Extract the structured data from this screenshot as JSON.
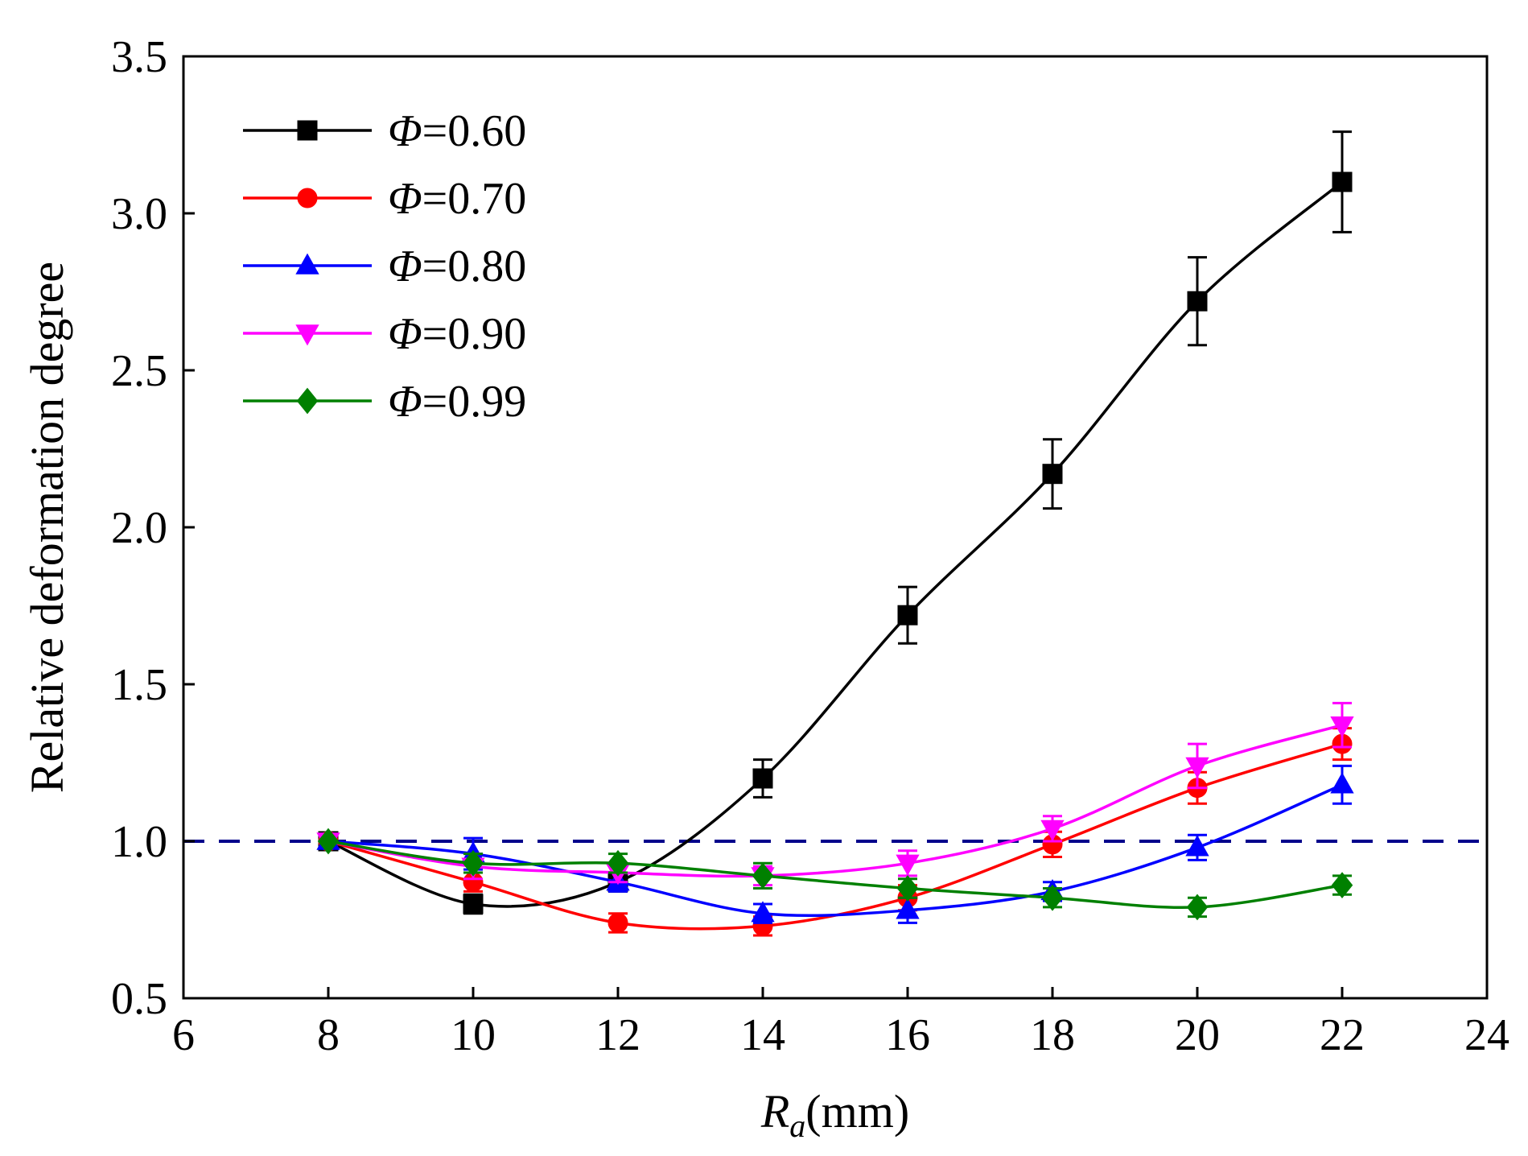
{
  "chart_data": {
    "type": "line",
    "xlabel": {
      "main": "R",
      "sub": "a",
      "unit": "(mm)"
    },
    "ylabel": "Relative deformation degree",
    "xlim": [
      6,
      24
    ],
    "ylim": [
      0.5,
      3.5
    ],
    "xticks": [
      "6",
      "8",
      "10",
      "12",
      "14",
      "16",
      "18",
      "20",
      "22",
      "24"
    ],
    "yticks": [
      "0.5",
      "1.0",
      "1.5",
      "2.0",
      "2.5",
      "3.0",
      "3.5"
    ],
    "reference_line": {
      "y": 1.0,
      "style": "dashed",
      "color": "#00008b"
    },
    "legend_position": "top-left",
    "x": [
      8,
      10,
      12,
      14,
      16,
      18,
      20,
      22
    ],
    "series": [
      {
        "symbol": "Φ",
        "value_text": "=0.60",
        "color": "#000000",
        "marker": "square",
        "values": [
          1.0,
          0.8,
          0.87,
          1.2,
          1.72,
          2.17,
          2.72,
          3.1
        ],
        "errors": [
          0.0,
          0.03,
          0.03,
          0.06,
          0.09,
          0.11,
          0.14,
          0.16
        ]
      },
      {
        "symbol": "Φ",
        "value_text": "=0.70",
        "color": "#ff0000",
        "marker": "circle",
        "values": [
          1.0,
          0.87,
          0.74,
          0.73,
          0.82,
          0.99,
          1.17,
          1.31
        ],
        "errors": [
          0.0,
          0.03,
          0.03,
          0.03,
          0.04,
          0.04,
          0.05,
          0.05
        ]
      },
      {
        "symbol": "Φ",
        "value_text": "=0.80",
        "color": "#0000ff",
        "marker": "triangle-up",
        "values": [
          1.0,
          0.96,
          0.87,
          0.77,
          0.78,
          0.84,
          0.98,
          1.18
        ],
        "errors": [
          0.0,
          0.05,
          0.03,
          0.03,
          0.04,
          0.03,
          0.04,
          0.06
        ]
      },
      {
        "symbol": "Φ",
        "value_text": "=0.90",
        "color": "#ff00ff",
        "marker": "triangle-down",
        "values": [
          1.0,
          0.92,
          0.9,
          0.89,
          0.93,
          1.04,
          1.24,
          1.37
        ],
        "errors": [
          0.0,
          0.04,
          0.03,
          0.03,
          0.04,
          0.04,
          0.07,
          0.07
        ]
      },
      {
        "symbol": "Φ",
        "value_text": "=0.99",
        "color": "#008000",
        "marker": "diamond",
        "values": [
          1.0,
          0.93,
          0.93,
          0.89,
          0.85,
          0.82,
          0.79,
          0.86
        ],
        "errors": [
          0.0,
          0.03,
          0.03,
          0.04,
          0.03,
          0.03,
          0.03,
          0.03
        ]
      }
    ]
  }
}
